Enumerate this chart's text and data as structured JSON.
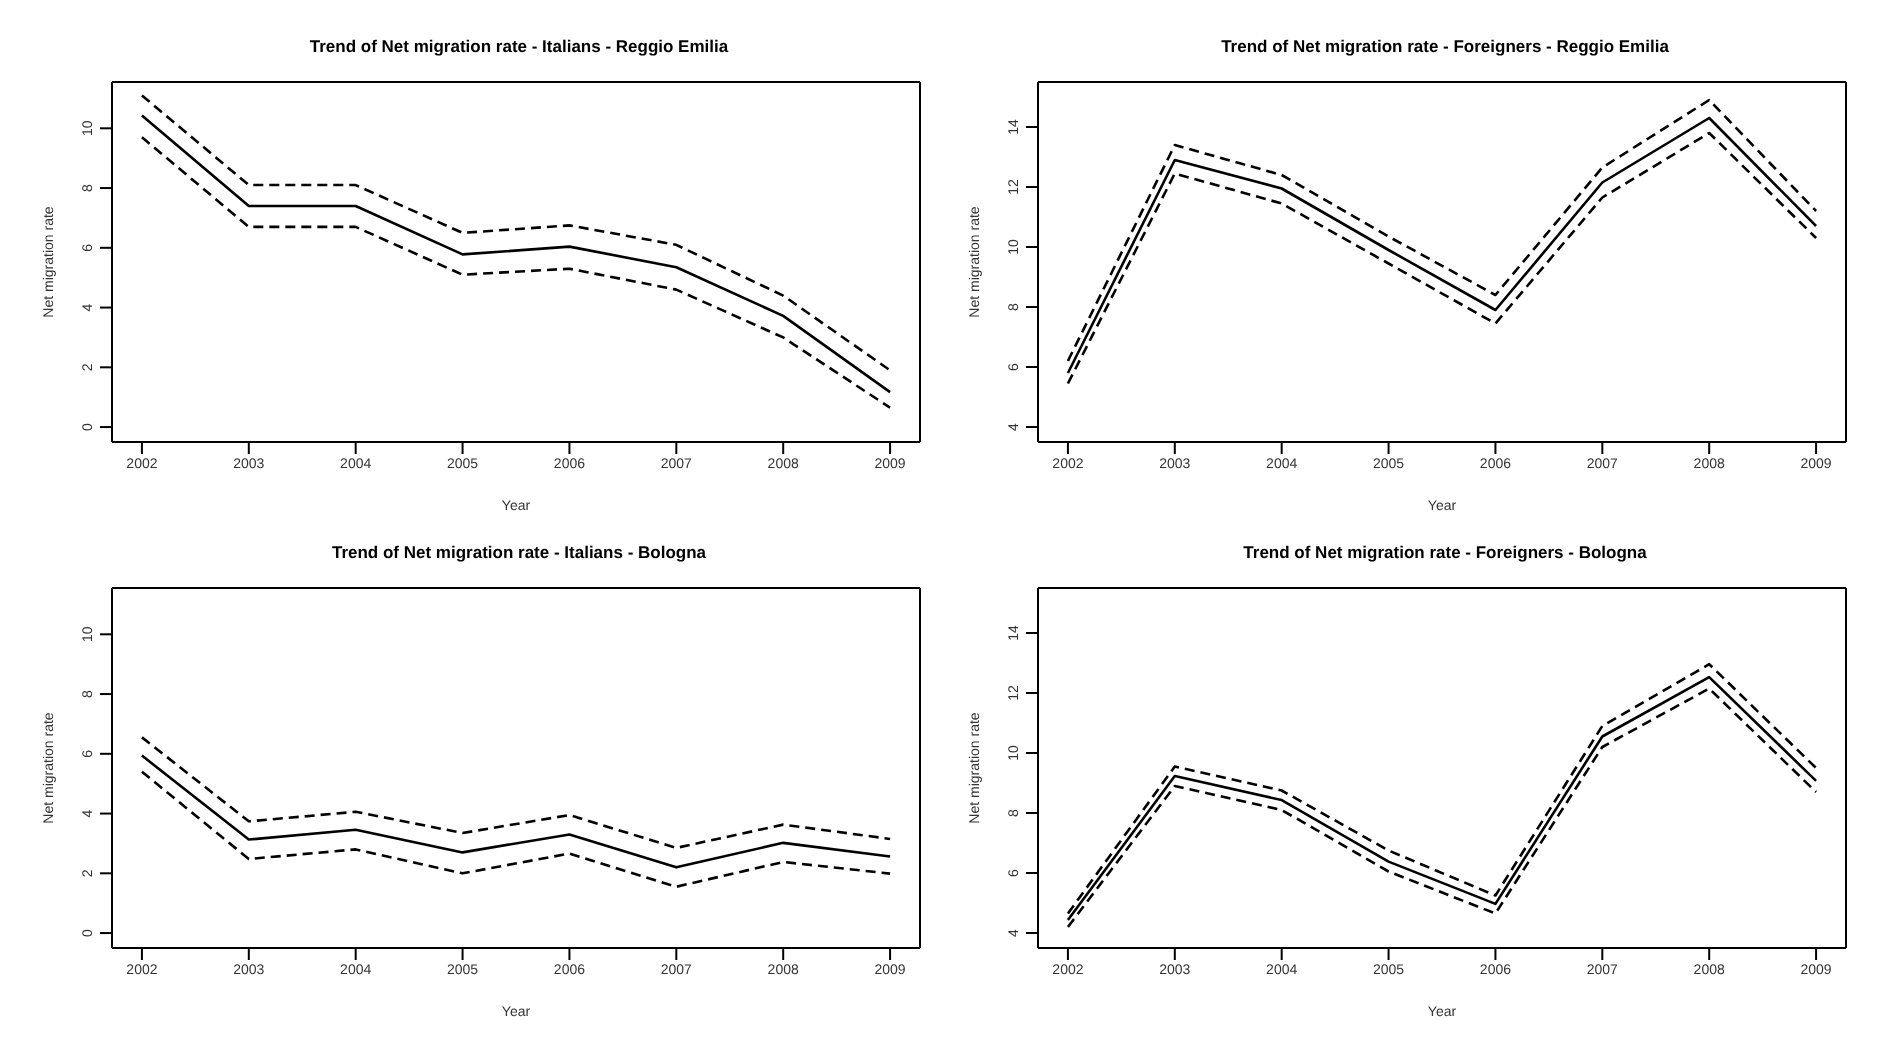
{
  "chart_data": [
    {
      "type": "line",
      "title": "Trend of Net migration rate - Italians - Reggio Emilia",
      "xlabel": "Year",
      "ylabel": "Net migration rate",
      "x": [
        2002,
        2003,
        2004,
        2005,
        2006,
        2007,
        2008,
        2009
      ],
      "xlim": [
        2001.72,
        2009.28
      ],
      "xticks": [
        2002,
        2003,
        2004,
        2005,
        2006,
        2007,
        2008,
        2009
      ],
      "ylim": [
        -0.5,
        11.55
      ],
      "yticks": [
        0,
        2,
        4,
        6,
        8,
        10
      ],
      "series": [
        {
          "color": "#000000",
          "line_style": "dashed",
          "values": [
            9.7,
            6.7,
            6.7,
            5.1,
            5.3,
            4.6,
            3.0,
            0.65
          ]
        },
        {
          "color": "#000000",
          "line_style": "solid",
          "values": [
            10.43,
            7.4,
            7.4,
            5.78,
            6.04,
            5.35,
            3.72,
            1.17
          ]
        },
        {
          "color": "#000000",
          "line_style": "dashed",
          "values": [
            11.1,
            8.1,
            8.1,
            6.5,
            6.75,
            6.1,
            4.4,
            1.9
          ]
        }
      ]
    },
    {
      "type": "line",
      "title": "Trend of Net migration rate - Foreigners - Reggio Emilia",
      "xlabel": "Year",
      "ylabel": "Net migration rate",
      "x": [
        2002,
        2003,
        2004,
        2005,
        2006,
        2007,
        2008,
        2009
      ],
      "xlim": [
        2001.72,
        2009.28
      ],
      "xticks": [
        2002,
        2003,
        2004,
        2005,
        2006,
        2007,
        2008,
        2009
      ],
      "ylim": [
        3.5,
        15.5
      ],
      "yticks": [
        4,
        6,
        8,
        10,
        12,
        14
      ],
      "series": [
        {
          "color": "#000000",
          "line_style": "dashed",
          "values": [
            5.45,
            12.45,
            11.45,
            9.45,
            7.45,
            11.65,
            13.8,
            10.3
          ]
        },
        {
          "color": "#000000",
          "line_style": "solid",
          "values": [
            5.8,
            12.9,
            11.95,
            9.9,
            7.9,
            12.15,
            14.3,
            10.7
          ]
        },
        {
          "color": "#000000",
          "line_style": "dashed",
          "values": [
            6.2,
            13.4,
            12.4,
            10.35,
            8.4,
            12.65,
            14.9,
            11.2
          ]
        }
      ]
    },
    {
      "type": "line",
      "title": "Trend of Net migration rate - Italians - Bologna",
      "xlabel": "Year",
      "ylabel": "Net migration rate",
      "x": [
        2002,
        2003,
        2004,
        2005,
        2006,
        2007,
        2008,
        2009
      ],
      "xlim": [
        2001.72,
        2009.28
      ],
      "xticks": [
        2002,
        2003,
        2004,
        2005,
        2006,
        2007,
        2008,
        2009
      ],
      "ylim": [
        -0.5,
        11.55
      ],
      "yticks": [
        0,
        2,
        4,
        6,
        8,
        10
      ],
      "series": [
        {
          "color": "#000000",
          "line_style": "dashed",
          "values": [
            5.4,
            2.48,
            2.8,
            2.0,
            2.66,
            1.55,
            2.38,
            1.99
          ]
        },
        {
          "color": "#000000",
          "line_style": "solid",
          "values": [
            5.94,
            3.13,
            3.46,
            2.7,
            3.3,
            2.2,
            3.02,
            2.56
          ]
        },
        {
          "color": "#000000",
          "line_style": "dashed",
          "values": [
            6.55,
            3.74,
            4.06,
            3.35,
            3.95,
            2.85,
            3.63,
            3.15
          ]
        }
      ]
    },
    {
      "type": "line",
      "title": "Trend of Net migration rate - Foreigners - Bologna",
      "xlabel": "Year",
      "ylabel": "Net migration rate",
      "x": [
        2002,
        2003,
        2004,
        2005,
        2006,
        2007,
        2008,
        2009
      ],
      "xlim": [
        2001.72,
        2009.28
      ],
      "xticks": [
        2002,
        2003,
        2004,
        2005,
        2006,
        2007,
        2008,
        2009
      ],
      "ylim": [
        3.5,
        15.5
      ],
      "yticks": [
        4,
        6,
        8,
        10,
        12,
        14
      ],
      "series": [
        {
          "color": "#000000",
          "line_style": "dashed",
          "values": [
            4.2,
            8.9,
            8.1,
            6.05,
            4.65,
            10.2,
            12.15,
            8.7
          ]
        },
        {
          "color": "#000000",
          "line_style": "solid",
          "values": [
            4.43,
            9.23,
            8.43,
            6.38,
            4.97,
            10.55,
            12.53,
            9.07
          ]
        },
        {
          "color": "#000000",
          "line_style": "dashed",
          "values": [
            4.65,
            9.55,
            8.75,
            6.75,
            5.25,
            10.9,
            12.96,
            9.5
          ]
        }
      ]
    }
  ]
}
